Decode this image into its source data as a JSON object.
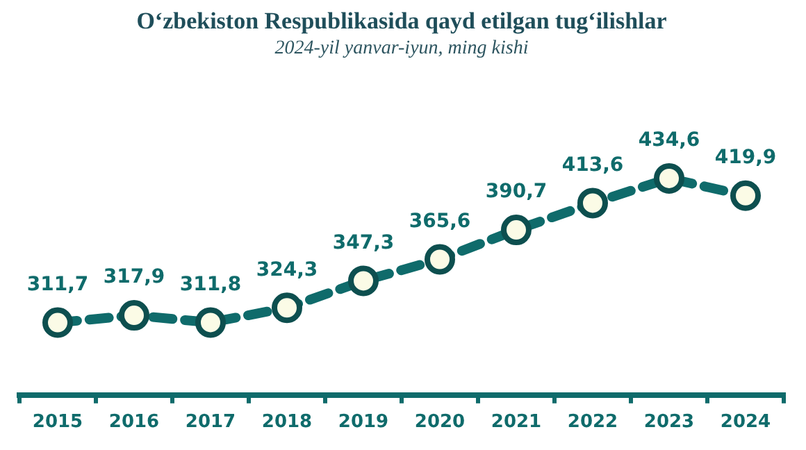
{
  "chart_data": {
    "type": "line",
    "title": "O‘zbekiston Respublikasida qayd etilgan tug‘ilishlar",
    "subtitle": "2024-yil yanvar-iyun, ming kishi",
    "categories": [
      "2015",
      "2016",
      "2017",
      "2018",
      "2019",
      "2020",
      "2021",
      "2022",
      "2023",
      "2024"
    ],
    "series": [
      {
        "color": "#0f6b6b",
        "values": [
          311.7,
          317.9,
          311.8,
          324.3,
          347.3,
          365.6,
          390.7,
          413.6,
          434.6,
          419.9
        ],
        "value_labels": [
          "311,7",
          "317,9",
          "311,8",
          "324,3",
          "347,3",
          "365,6",
          "390,7",
          "413,6",
          "434,6",
          "419,9"
        ]
      }
    ],
    "tick_labels": "x",
    "legend": false,
    "marker": "circle",
    "line_style": "dashed"
  }
}
